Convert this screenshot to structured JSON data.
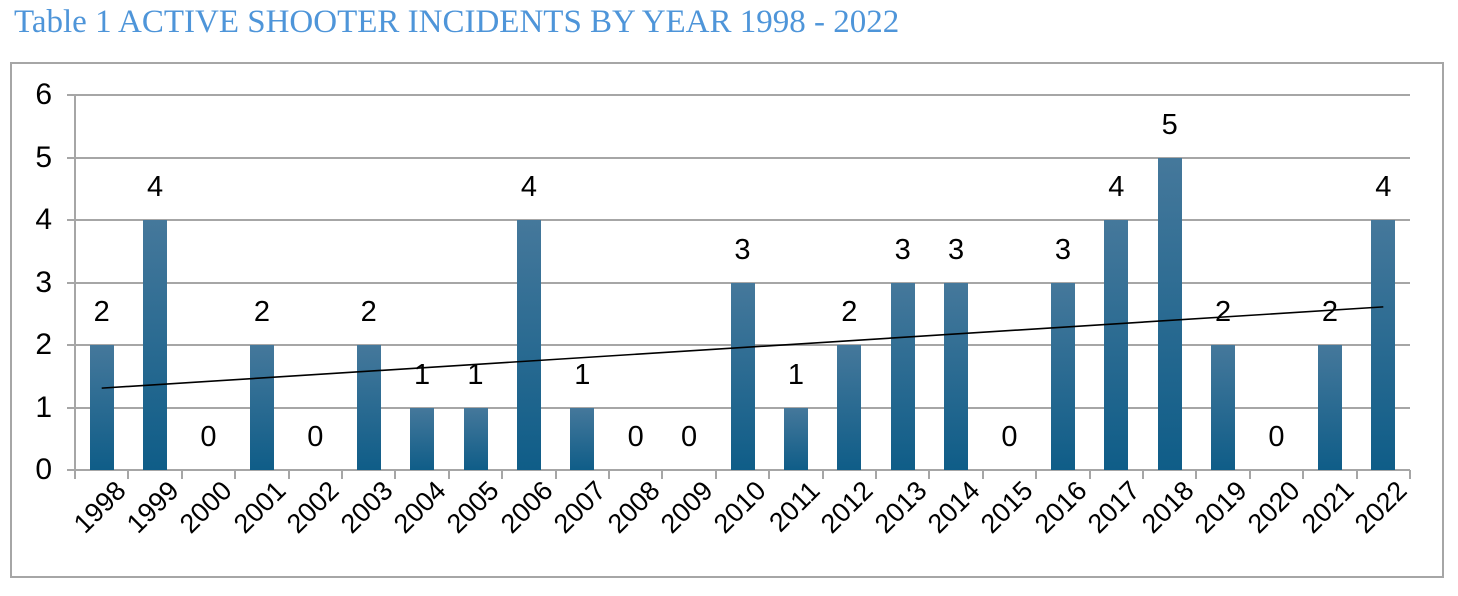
{
  "title": "Table 1 ACTIVE SHOOTER INCIDENTS BY YEAR 1998 - 2022",
  "colors": {
    "title_text": "#4e95d9",
    "grid": "#a6a6a6",
    "frame_border": "#a6a6a6",
    "label_text": "#000000",
    "trendline": "#000000",
    "bar_gradient_top": "#45789b",
    "bar_gradient_bottom": "#0f5d88",
    "background": "#ffffff"
  },
  "chart_data": {
    "type": "bar",
    "title": "Table 1 ACTIVE SHOOTER INCIDENTS BY YEAR 1998 - 2022",
    "categories": [
      "1998",
      "1999",
      "2000",
      "2001",
      "2002",
      "2003",
      "2004",
      "2005",
      "2006",
      "2007",
      "2008",
      "2009",
      "2010",
      "2011",
      "2012",
      "2013",
      "2014",
      "2015",
      "2016",
      "2017",
      "2018",
      "2019",
      "2020",
      "2021",
      "2022"
    ],
    "values": [
      2,
      4,
      0,
      2,
      0,
      2,
      1,
      1,
      4,
      1,
      0,
      0,
      3,
      1,
      2,
      3,
      3,
      0,
      3,
      4,
      5,
      2,
      0,
      2,
      4
    ],
    "data_labels_shown": true,
    "xlabel": "",
    "ylabel": "",
    "ylim": [
      0,
      6
    ],
    "ytick_labels": [
      "0",
      "1",
      "2",
      "3",
      "4",
      "5",
      "6"
    ],
    "grid": true,
    "legend": "none",
    "trendline": {
      "type": "linear",
      "start_value": 1.31,
      "end_value": 2.61
    }
  }
}
